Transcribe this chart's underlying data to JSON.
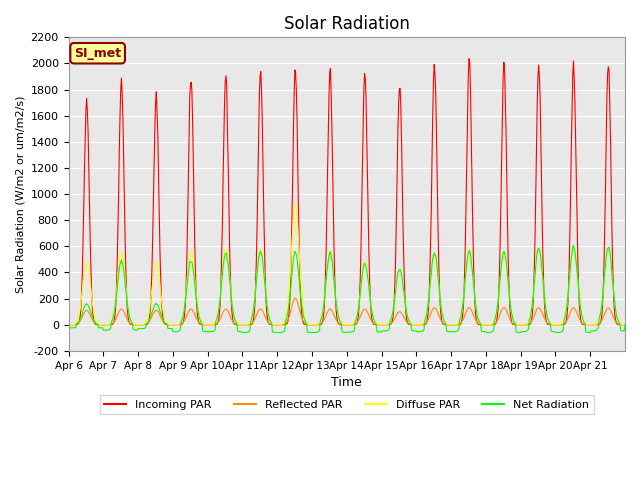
{
  "title": "Solar Radiation",
  "ylabel": "Solar Radiation (W/m2 or um/m2/s)",
  "xlabel": "Time",
  "ylim": [
    -200,
    2200
  ],
  "yticks": [
    -200,
    0,
    200,
    400,
    600,
    800,
    1000,
    1200,
    1400,
    1600,
    1800,
    2000,
    2200
  ],
  "xtick_labels": [
    "Apr 6",
    "Apr 7",
    "Apr 8",
    "Apr 9",
    "Apr 10",
    "Apr 11",
    "Apr 12",
    "Apr 13",
    "Apr 14",
    "Apr 15",
    "Apr 16",
    "Apr 17",
    "Apr 18",
    "Apr 19",
    "Apr 20",
    "Apr 21"
  ],
  "colors": {
    "incoming": "#FF0000",
    "reflected": "#FF8C00",
    "diffuse": "#FFFF00",
    "net": "#00FF00"
  },
  "legend_labels": [
    "Incoming PAR",
    "Reflected PAR",
    "Diffuse PAR",
    "Net Radiation"
  ],
  "label_box_text": "SI_met",
  "label_box_facecolor": "#FFFF99",
  "label_box_edgecolor": "#8B0000",
  "label_text_color": "#8B0000",
  "plot_bg_color": "#E8E8E8",
  "fig_bg_color": "#FFFFFF",
  "incoming_peaks": [
    1730,
    1870,
    1750,
    1900,
    1920,
    1940,
    1930,
    1940,
    1930,
    1850,
    2000,
    2020,
    2010,
    2000,
    1990,
    2020
  ],
  "diffuse_peaks": [
    480,
    550,
    470,
    560,
    580,
    580,
    900,
    560,
    480,
    430,
    550,
    570,
    560,
    590,
    590,
    600
  ],
  "reflected_peaks": [
    110,
    120,
    110,
    120,
    120,
    120,
    200,
    120,
    120,
    100,
    130,
    130,
    130,
    130,
    130,
    130
  ],
  "net_peaks": [
    160,
    490,
    160,
    490,
    550,
    560,
    550,
    550,
    470,
    430,
    550,
    560,
    560,
    590,
    600,
    600
  ],
  "net_negative": [
    -40,
    -70,
    -50,
    -90,
    -90,
    -100,
    -100,
    -100,
    -95,
    -80,
    -90,
    -90,
    -100,
    -90,
    -100,
    -80
  ],
  "n_days": 16,
  "samples_per_day": 48
}
